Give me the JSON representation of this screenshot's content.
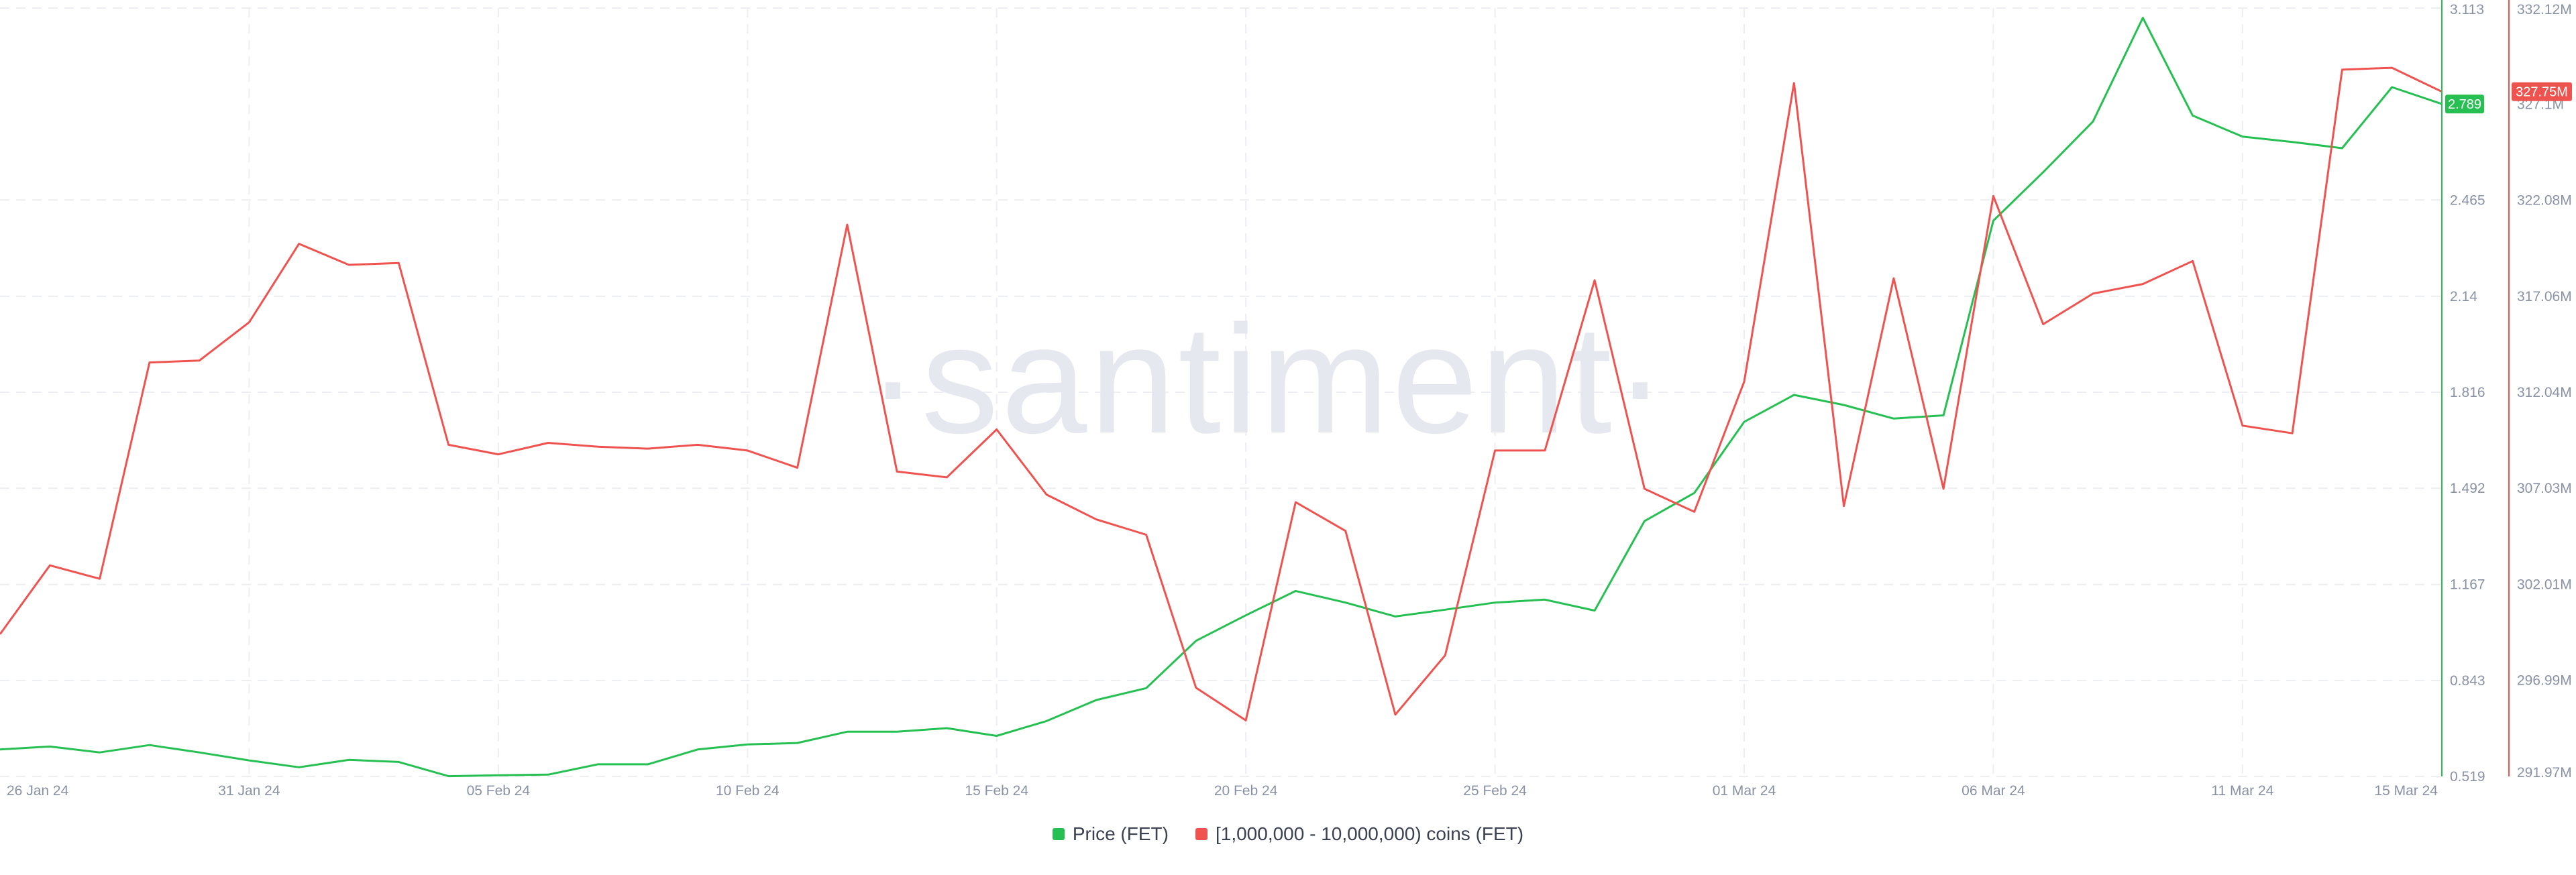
{
  "watermark": "·santiment·",
  "chart_data": {
    "type": "line",
    "x_labels": [
      "26 Jan 24",
      "31 Jan 24",
      "05 Feb 24",
      "10 Feb 24",
      "15 Feb 24",
      "20 Feb 24",
      "25 Feb 24",
      "01 Mar 24",
      "06 Mar 24",
      "11 Mar 24",
      "15 Mar 24"
    ],
    "x_range": [
      "2024-01-26",
      "2024-03-15"
    ],
    "grid": true,
    "legend_position": "bottom-center",
    "axes": {
      "price": {
        "side": "right-inner",
        "ticks": [
          "3.113",
          "2.465",
          "2.14",
          "1.816",
          "1.492",
          "1.167",
          "0.843",
          "0.519"
        ],
        "range": [
          0.519,
          3.113
        ]
      },
      "holders": {
        "side": "right-outer",
        "ticks": [
          "332.12M",
          "327.1M",
          "322.08M",
          "317.06M",
          "312.04M",
          "307.03M",
          "302.01M",
          "296.99M",
          "291.97M"
        ],
        "range": [
          291.97,
          332.12
        ]
      }
    },
    "current_values": {
      "price": "2.789",
      "holders": "327.75M"
    },
    "series": [
      {
        "name": "Price (FET)",
        "axis": "price",
        "color": "#26c052",
        "x": [
          "2024-01-26",
          "2024-01-27",
          "2024-01-28",
          "2024-01-29",
          "2024-01-30",
          "2024-01-31",
          "2024-02-01",
          "2024-02-02",
          "2024-02-03",
          "2024-02-04",
          "2024-02-05",
          "2024-02-06",
          "2024-02-07",
          "2024-02-08",
          "2024-02-09",
          "2024-02-10",
          "2024-02-11",
          "2024-02-12",
          "2024-02-13",
          "2024-02-14",
          "2024-02-15",
          "2024-02-16",
          "2024-02-17",
          "2024-02-18",
          "2024-02-19",
          "2024-02-20",
          "2024-02-21",
          "2024-02-22",
          "2024-02-23",
          "2024-02-24",
          "2024-02-25",
          "2024-02-26",
          "2024-02-27",
          "2024-02-28",
          "2024-02-29",
          "2024-03-01",
          "2024-03-02",
          "2024-03-03",
          "2024-03-04",
          "2024-03-05",
          "2024-03-06",
          "2024-03-07",
          "2024-03-08",
          "2024-03-09",
          "2024-03-10",
          "2024-03-11",
          "2024-03-12",
          "2024-03-13",
          "2024-03-14",
          "2024-03-15"
        ],
        "values": [
          0.61,
          0.62,
          0.6,
          0.625,
          0.6,
          0.573,
          0.55,
          0.575,
          0.568,
          0.52,
          0.523,
          0.525,
          0.56,
          0.56,
          0.61,
          0.627,
          0.632,
          0.67,
          0.67,
          0.682,
          0.656,
          0.706,
          0.777,
          0.817,
          0.977,
          1.063,
          1.145,
          1.106,
          1.059,
          1.082,
          1.106,
          1.116,
          1.079,
          1.381,
          1.476,
          1.716,
          1.807,
          1.773,
          1.727,
          1.738,
          2.395,
          2.559,
          2.73,
          3.08,
          2.75,
          2.679,
          2.661,
          2.64,
          2.846,
          2.789
        ]
      },
      {
        "name": "[1,000,000 - 10,000,000) coins (FET)",
        "axis": "holders",
        "color": "#ef5350",
        "x": [
          "2024-01-26",
          "2024-01-27",
          "2024-01-28",
          "2024-01-29",
          "2024-01-30",
          "2024-01-31",
          "2024-02-01",
          "2024-02-02",
          "2024-02-03",
          "2024-02-04",
          "2024-02-05",
          "2024-02-06",
          "2024-02-07",
          "2024-02-08",
          "2024-02-09",
          "2024-02-10",
          "2024-02-11",
          "2024-02-12",
          "2024-02-13",
          "2024-02-14",
          "2024-02-15",
          "2024-02-16",
          "2024-02-17",
          "2024-02-18",
          "2024-02-19",
          "2024-02-20",
          "2024-02-21",
          "2024-02-22",
          "2024-02-23",
          "2024-02-24",
          "2024-02-25",
          "2024-02-26",
          "2024-02-27",
          "2024-02-28",
          "2024-02-29",
          "2024-03-01",
          "2024-03-02",
          "2024-03-03",
          "2024-03-04",
          "2024-03-05",
          "2024-03-06",
          "2024-03-07",
          "2024-03-08",
          "2024-03-09",
          "2024-03-10",
          "2024-03-11",
          "2024-03-12",
          "2024-03-13",
          "2024-03-14",
          "2024-03-15"
        ],
        "values": [
          299.4,
          303.0,
          302.3,
          313.6,
          313.7,
          315.7,
          319.8,
          318.7,
          318.8,
          309.3,
          308.8,
          309.4,
          309.2,
          309.1,
          309.3,
          309.0,
          308.1,
          320.8,
          307.9,
          307.6,
          310.1,
          306.7,
          305.4,
          304.6,
          296.6,
          294.9,
          306.3,
          304.8,
          295.2,
          298.3,
          309.0,
          309.0,
          317.9,
          307.0,
          305.8,
          312.6,
          328.2,
          306.1,
          318.0,
          307.0,
          322.3,
          315.6,
          317.2,
          317.7,
          318.9,
          310.3,
          309.9,
          328.9,
          329.0,
          327.75
        ]
      }
    ]
  }
}
